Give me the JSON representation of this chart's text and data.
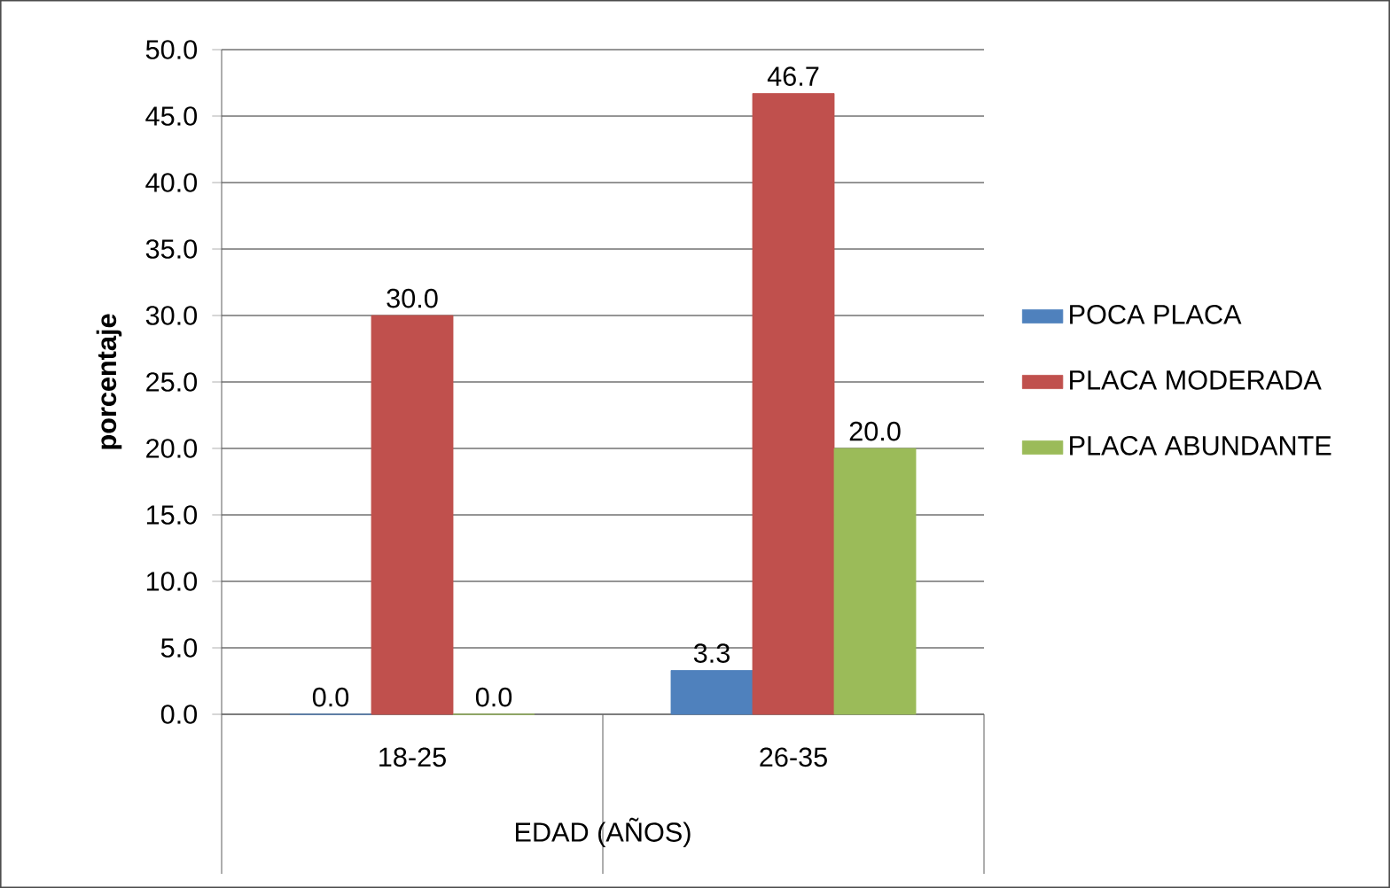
{
  "chart_data": {
    "type": "bar",
    "xlabel": "EDAD (AÑOS)",
    "ylabel": "porcentaje",
    "categories": [
      "18-25",
      "26-35"
    ],
    "series": [
      {
        "name": "POCA PLACA",
        "color": "#4f81bd",
        "values": [
          0,
          3.3
        ],
        "value_labels": [
          "0.0",
          "3.3"
        ]
      },
      {
        "name": "PLACA MODERADA",
        "color": "#c0504d",
        "values": [
          30,
          46.7
        ],
        "value_labels": [
          "30.0",
          "46.7"
        ]
      },
      {
        "name": "PLACA ABUNDANTE",
        "color": "#9bbb59",
        "values": [
          0,
          20
        ],
        "value_labels": [
          "0.0",
          "20.0"
        ]
      }
    ],
    "ylim": [
      0,
      50
    ],
    "yticks": [
      {
        "value": 0,
        "label": "0.0"
      },
      {
        "value": 5,
        "label": "5.0"
      },
      {
        "value": 10,
        "label": "10.0"
      },
      {
        "value": 15,
        "label": "15.0"
      },
      {
        "value": 20,
        "label": "20.0"
      },
      {
        "value": 25,
        "label": "25.0"
      },
      {
        "value": 30,
        "label": "30.0"
      },
      {
        "value": 35,
        "label": "35.0"
      },
      {
        "value": 40,
        "label": "40.0"
      },
      {
        "value": 45,
        "label": "45.0"
      },
      {
        "value": 50,
        "label": "50.0"
      }
    ],
    "grid": "y",
    "legend": "right"
  }
}
